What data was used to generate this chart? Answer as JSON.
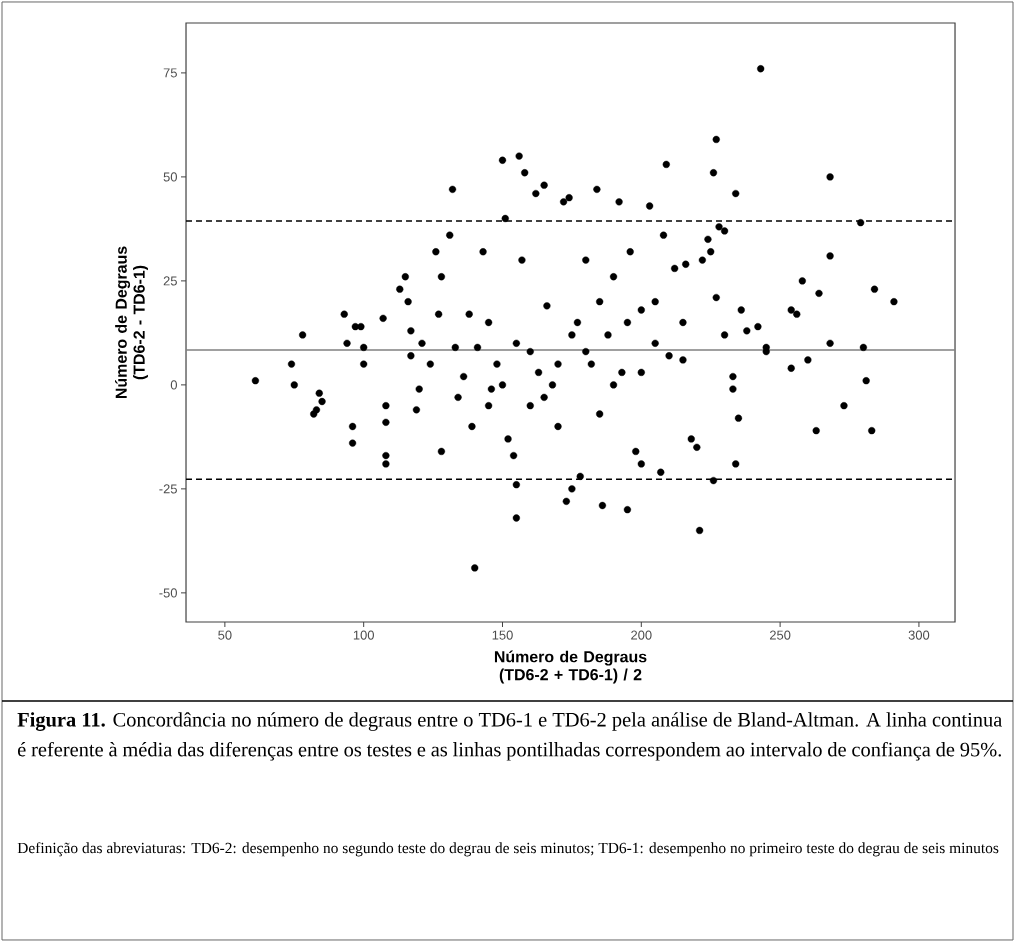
{
  "chart_data": {
    "type": "scatter",
    "xlabel": "Número de Degraus (TD6-2 + TD6-1) / 2",
    "ylabel": "Número de Degraus (TD6-2 - TD6-1)",
    "xlim": [
      36,
      313
    ],
    "ylim": [
      -57,
      87
    ],
    "xticks": [
      50,
      100,
      150,
      200,
      250,
      300
    ],
    "yticks": [
      -50,
      -25,
      0,
      25,
      50,
      75
    ],
    "marker": "circle",
    "ref_lines": [
      {
        "axis": "y",
        "value": 8.4,
        "color": "#808080",
        "line_style": "solid"
      },
      {
        "axis": "y",
        "value": 39.4,
        "color": "#000000",
        "line_style": "dashed"
      },
      {
        "axis": "y",
        "value": -22.7,
        "color": "#000000",
        "line_style": "dashed"
      }
    ],
    "series": [
      {
        "color": "#000000",
        "x": [
          61,
          74,
          75,
          78,
          82,
          83,
          84,
          85,
          93,
          94,
          96,
          96,
          97,
          99,
          100,
          100,
          107,
          108,
          108,
          108,
          108,
          113,
          115,
          116,
          117,
          117,
          119,
          120,
          121,
          124,
          126,
          127,
          128,
          128,
          131,
          132,
          133,
          134,
          136,
          138,
          139,
          140,
          141,
          143,
          145,
          146,
          148,
          150,
          151,
          152,
          154,
          155,
          155,
          156,
          157,
          158,
          160,
          162,
          163,
          165,
          166,
          168,
          170,
          172,
          173,
          174,
          175,
          177,
          178,
          180,
          182,
          184,
          185,
          186,
          188,
          190,
          192,
          193,
          195,
          196,
          198,
          200,
          200,
          203,
          205,
          207,
          208,
          209,
          212,
          215,
          216,
          218,
          220,
          221,
          222,
          224,
          225,
          226,
          226,
          227,
          227,
          228,
          230,
          230,
          233,
          233,
          234,
          234,
          235,
          236,
          238,
          242,
          243,
          245,
          245,
          254,
          254,
          256,
          258,
          260,
          263,
          264,
          268,
          268,
          268,
          273,
          279,
          280,
          281,
          283,
          284,
          291,
          150,
          160,
          170,
          180,
          190,
          200,
          210,
          175,
          165,
          185,
          195,
          155,
          145,
          205,
          215
        ],
        "values": [
          1,
          5,
          0,
          12,
          -7,
          -6,
          -2,
          -4,
          17,
          10,
          -10,
          -14,
          14,
          14,
          9,
          5,
          16,
          -5,
          -9,
          -17,
          -19,
          23,
          26,
          20,
          13,
          7,
          -6,
          -1,
          10,
          5,
          32,
          17,
          -16,
          26,
          36,
          47,
          9,
          -3,
          2,
          17,
          -10,
          -44,
          9,
          32,
          15,
          -1,
          5,
          54,
          40,
          -13,
          -17,
          -24,
          -32,
          55,
          30,
          51,
          8,
          46,
          3,
          48,
          19,
          0,
          -10,
          44,
          -28,
          45,
          -25,
          15,
          -22,
          30,
          5,
          47,
          20,
          -29,
          12,
          26,
          44,
          3,
          -30,
          32,
          -16,
          -19,
          18,
          43,
          10,
          -21,
          36,
          53,
          28,
          6,
          29,
          -13,
          -15,
          -35,
          30,
          35,
          32,
          -23,
          51,
          59,
          21,
          38,
          37,
          12,
          2,
          -1,
          46,
          -19,
          -8,
          18,
          13,
          14,
          76,
          8,
          9,
          4,
          18,
          17,
          25,
          6,
          -11,
          22,
          50,
          31,
          10,
          -5,
          39,
          9,
          1,
          -11,
          23,
          20,
          0,
          -5,
          5,
          8,
          0,
          3,
          7,
          12,
          -3,
          -7,
          15,
          10,
          -5,
          20,
          15
        ]
      }
    ],
    "annotations": [
      "**Figura 11.** Concordância no número de degraus entre o TD6-1 e TD6-2 pela análise de Bland-Altman. A linha continua é referente à média das diferenças entre os testes e as linhas pontilhadas correspondem ao intervalo de confiança de 95%.",
      "Definição das abreviaturas: TD6-2: desempenho no segundo teste do degrau de seis minutos; TD6-1: desempenho no primeiro teste do degrau de seis minutos"
    ]
  }
}
